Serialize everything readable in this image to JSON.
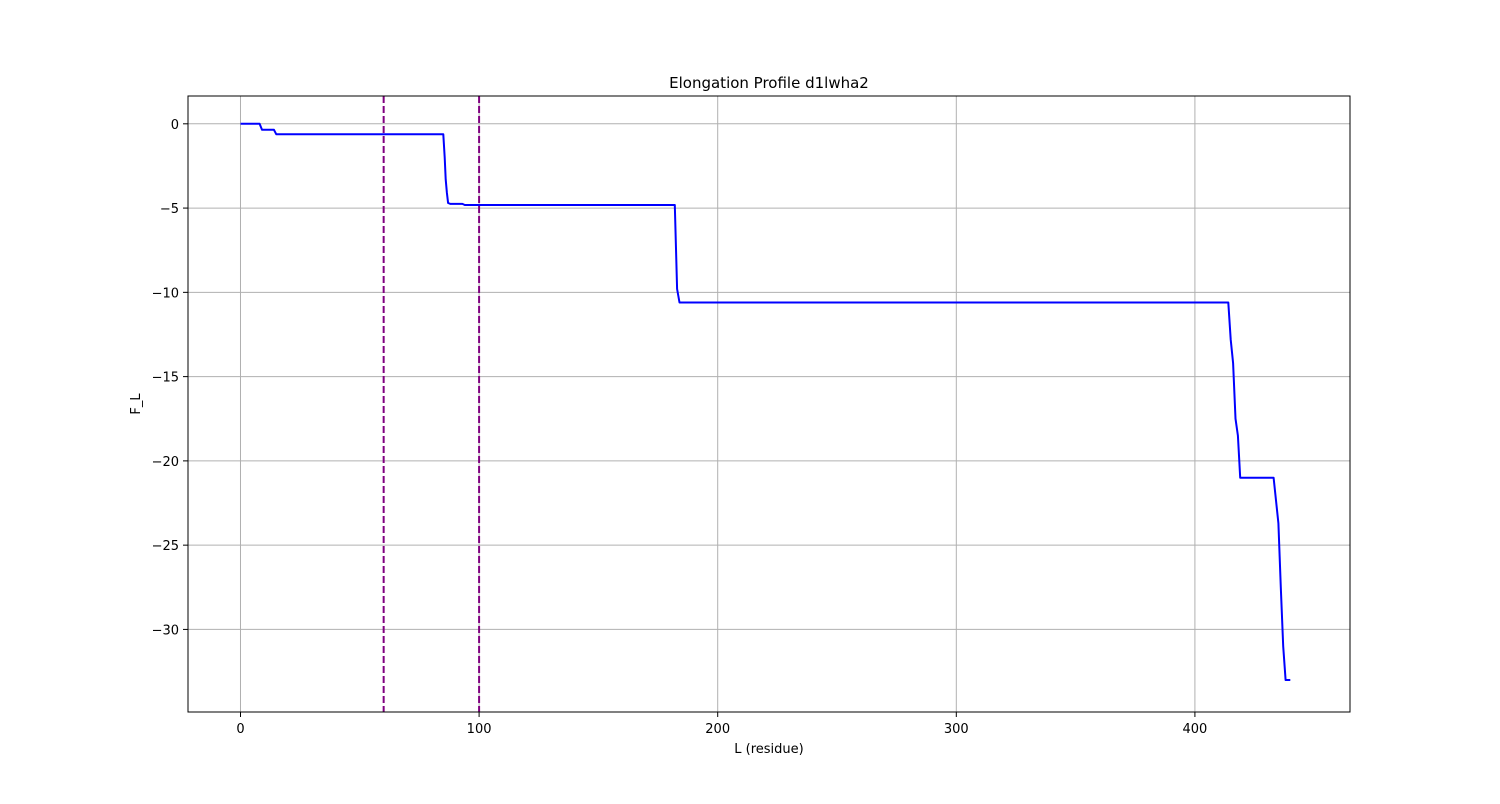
{
  "chart_data": {
    "type": "line",
    "title": "Elongation Profile d1lwha2",
    "xlabel": "L (residue)",
    "ylabel": "F_L",
    "xlim": [
      -22,
      465
    ],
    "ylim": [
      -34.9,
      1.65
    ],
    "xticks": [
      0,
      100,
      200,
      300,
      400
    ],
    "yticks": [
      0,
      -5,
      -10,
      -15,
      -20,
      -25,
      -30
    ],
    "xtick_labels": [
      "0",
      "100",
      "200",
      "300",
      "400"
    ],
    "ytick_labels": [
      "0",
      "−5",
      "−10",
      "−15",
      "−20",
      "−25",
      "−30"
    ],
    "grid": true,
    "series": [
      {
        "color": "#0000ff",
        "x": [
          0,
          8,
          9,
          14,
          15,
          85,
          85.6,
          86,
          86.5,
          87,
          88,
          93,
          94,
          182,
          183,
          184,
          414,
          415,
          416,
          417,
          418,
          419,
          420,
          433,
          435,
          436,
          437,
          438,
          439,
          440
        ],
        "y": [
          0,
          0,
          -0.35,
          -0.35,
          -0.62,
          -0.62,
          -2.0,
          -3.3,
          -4.1,
          -4.7,
          -4.75,
          -4.75,
          -4.82,
          -4.82,
          -9.8,
          -10.6,
          -10.6,
          -12.8,
          -14.2,
          -17.5,
          -18.5,
          -21.0,
          -21.0,
          -21.0,
          -23.7,
          -27.5,
          -31.0,
          -33.0,
          -33.0,
          -33.0
        ]
      }
    ],
    "vlines": [
      {
        "x": 60,
        "color": "#800080",
        "style": "dashed"
      },
      {
        "x": 100,
        "color": "#800080",
        "style": "dashed"
      }
    ]
  }
}
